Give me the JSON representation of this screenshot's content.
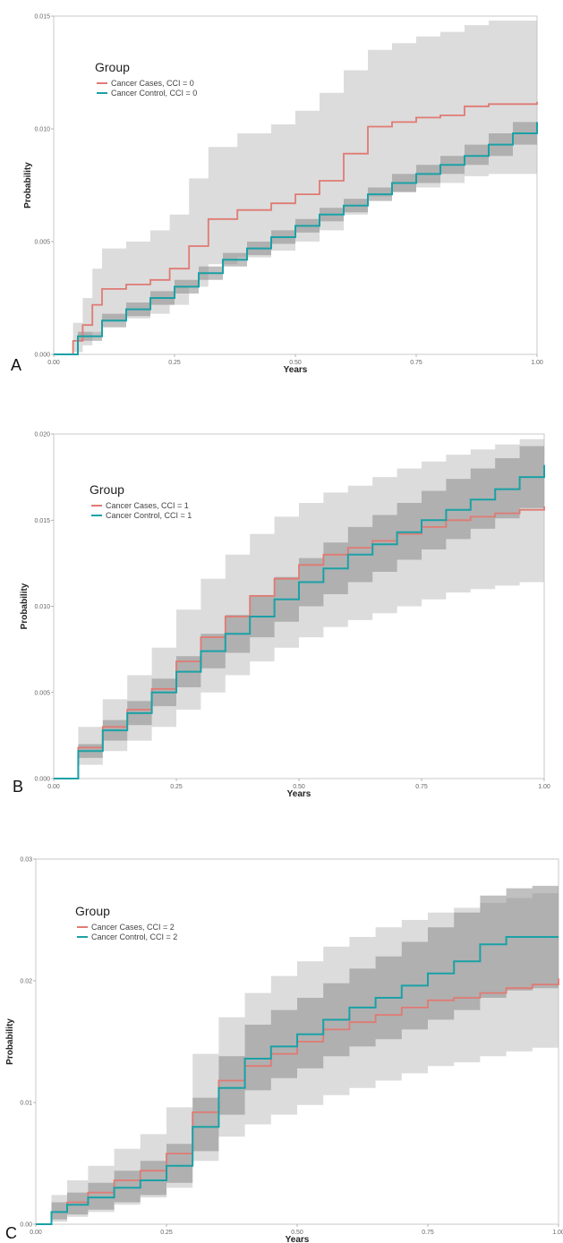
{
  "chart_data": [
    {
      "panel_label": "A",
      "type": "line",
      "xlabel": "Years",
      "ylabel": "Probability",
      "xlim": [
        0,
        1
      ],
      "ylim": [
        0,
        0.015
      ],
      "x_ticks": [
        "0.00",
        "0.25",
        "0.50",
        "0.75",
        "1.00"
      ],
      "y_ticks": [
        "0.000",
        "0.005",
        "0.010",
        "0.015"
      ],
      "legend_title": "Group",
      "legend_position": "top-left",
      "grid": false,
      "series": [
        {
          "name": "Cancer Cases, CCI = 0",
          "color": "#e07a73",
          "x": [
            0,
            0.04,
            0.06,
            0.08,
            0.1,
            0.15,
            0.2,
            0.24,
            0.28,
            0.32,
            0.38,
            0.45,
            0.5,
            0.55,
            0.6,
            0.65,
            0.7,
            0.75,
            0.8,
            0.85,
            0.9,
            1.0
          ],
          "y": [
            0,
            0.0006,
            0.0013,
            0.0022,
            0.0029,
            0.0031,
            0.0033,
            0.0038,
            0.0048,
            0.006,
            0.0064,
            0.0067,
            0.0071,
            0.0077,
            0.0089,
            0.0101,
            0.0103,
            0.0105,
            0.0106,
            0.011,
            0.0111,
            0.0112
          ],
          "ci_lower": [
            0,
            0.0001,
            0.0004,
            0.001,
            0.0015,
            0.0016,
            0.0018,
            0.0022,
            0.003,
            0.004,
            0.0043,
            0.0046,
            0.005,
            0.0055,
            0.0062,
            0.007,
            0.0072,
            0.0074,
            0.0076,
            0.0079,
            0.008,
            0.0082
          ],
          "ci_upper": [
            0,
            0.0014,
            0.0025,
            0.0038,
            0.0047,
            0.005,
            0.0055,
            0.0062,
            0.0078,
            0.0092,
            0.0098,
            0.0102,
            0.0108,
            0.0116,
            0.0126,
            0.0135,
            0.0138,
            0.0141,
            0.0143,
            0.0146,
            0.0148,
            0.015
          ]
        },
        {
          "name": "Cancer Control, CCI = 0",
          "color": "#1aa1a6",
          "x": [
            0,
            0.05,
            0.1,
            0.15,
            0.2,
            0.25,
            0.3,
            0.35,
            0.4,
            0.45,
            0.5,
            0.55,
            0.6,
            0.65,
            0.7,
            0.75,
            0.8,
            0.85,
            0.9,
            0.95,
            1.0
          ],
          "y": [
            0,
            0.0008,
            0.0015,
            0.002,
            0.0025,
            0.003,
            0.0036,
            0.0042,
            0.0047,
            0.0052,
            0.0057,
            0.0062,
            0.0066,
            0.0071,
            0.0076,
            0.008,
            0.0084,
            0.0088,
            0.0093,
            0.0098,
            0.0103
          ],
          "ci_lower": [
            0,
            0.0006,
            0.0012,
            0.0017,
            0.0022,
            0.0027,
            0.0033,
            0.0039,
            0.0044,
            0.0049,
            0.0054,
            0.0059,
            0.0063,
            0.0068,
            0.0072,
            0.0076,
            0.008,
            0.0084,
            0.0088,
            0.0093,
            0.0097
          ],
          "ci_upper": [
            0,
            0.001,
            0.0018,
            0.0023,
            0.0028,
            0.0033,
            0.0039,
            0.0045,
            0.005,
            0.0055,
            0.006,
            0.0065,
            0.0069,
            0.0074,
            0.008,
            0.0084,
            0.0088,
            0.0093,
            0.0098,
            0.0103,
            0.0108
          ]
        }
      ]
    },
    {
      "panel_label": "B",
      "type": "line",
      "xlabel": "Years",
      "ylabel": "Probability",
      "xlim": [
        0,
        1
      ],
      "ylim": [
        0,
        0.02
      ],
      "x_ticks": [
        "0.00",
        "0.25",
        "0.50",
        "0.75",
        "1.00"
      ],
      "y_ticks": [
        "0.000",
        "0.005",
        "0.010",
        "0.015",
        "0.020"
      ],
      "legend_title": "Group",
      "legend_position": "top-left",
      "grid": false,
      "series": [
        {
          "name": "Cancer Cases, CCI = 1",
          "color": "#e07a73",
          "x": [
            0,
            0.05,
            0.1,
            0.15,
            0.2,
            0.25,
            0.3,
            0.35,
            0.4,
            0.45,
            0.5,
            0.55,
            0.6,
            0.65,
            0.7,
            0.75,
            0.8,
            0.85,
            0.9,
            0.95,
            1.0
          ],
          "y": [
            0,
            0.0018,
            0.003,
            0.004,
            0.0052,
            0.0068,
            0.0082,
            0.0094,
            0.0106,
            0.0116,
            0.0124,
            0.013,
            0.0134,
            0.0138,
            0.0142,
            0.0146,
            0.015,
            0.0152,
            0.0154,
            0.0156,
            0.0158
          ],
          "ci_lower": [
            0,
            0.0008,
            0.0016,
            0.0022,
            0.003,
            0.004,
            0.005,
            0.006,
            0.0068,
            0.0076,
            0.0082,
            0.0088,
            0.0092,
            0.0096,
            0.01,
            0.0104,
            0.0108,
            0.011,
            0.0112,
            0.0114,
            0.0116
          ],
          "ci_upper": [
            0,
            0.003,
            0.0046,
            0.006,
            0.0076,
            0.0098,
            0.0116,
            0.013,
            0.0142,
            0.0152,
            0.016,
            0.0166,
            0.017,
            0.0175,
            0.018,
            0.0184,
            0.0188,
            0.0191,
            0.0194,
            0.0197,
            0.02
          ]
        },
        {
          "name": "Cancer Control, CCI = 1",
          "color": "#1aa1a6",
          "x": [
            0,
            0.05,
            0.1,
            0.15,
            0.2,
            0.25,
            0.3,
            0.35,
            0.4,
            0.45,
            0.5,
            0.55,
            0.6,
            0.65,
            0.7,
            0.75,
            0.8,
            0.85,
            0.9,
            0.95,
            1.0
          ],
          "y": [
            0,
            0.0016,
            0.0028,
            0.0038,
            0.005,
            0.0062,
            0.0074,
            0.0084,
            0.0094,
            0.0104,
            0.0114,
            0.0122,
            0.013,
            0.0136,
            0.0143,
            0.015,
            0.0156,
            0.0162,
            0.0168,
            0.0175,
            0.0182
          ],
          "ci_lower": [
            0,
            0.0012,
            0.0022,
            0.0031,
            0.0042,
            0.0053,
            0.0064,
            0.0073,
            0.0082,
            0.0091,
            0.01,
            0.0107,
            0.0114,
            0.012,
            0.0127,
            0.0133,
            0.0139,
            0.0145,
            0.0151,
            0.0157,
            0.0163
          ],
          "ci_upper": [
            0,
            0.002,
            0.0034,
            0.0045,
            0.0058,
            0.0071,
            0.0084,
            0.0095,
            0.0106,
            0.0117,
            0.0128,
            0.0137,
            0.0146,
            0.0153,
            0.016,
            0.0167,
            0.0174,
            0.018,
            0.0186,
            0.0193,
            0.02
          ]
        }
      ]
    },
    {
      "panel_label": "C",
      "type": "line",
      "xlabel": "Years",
      "ylabel": "Probability",
      "xlim": [
        0,
        1
      ],
      "ylim": [
        0,
        0.03
      ],
      "x_ticks": [
        "0.00",
        "0.25",
        "0.50",
        "0.75",
        "1.00"
      ],
      "y_ticks": [
        "0.00",
        "0.01",
        "0.02",
        "0.03"
      ],
      "legend_title": "Group",
      "legend_position": "top-left",
      "grid": false,
      "series": [
        {
          "name": "Cancer Cases, CCI = 2",
          "color": "#e07a73",
          "x": [
            0,
            0.03,
            0.06,
            0.1,
            0.15,
            0.2,
            0.25,
            0.3,
            0.35,
            0.4,
            0.45,
            0.5,
            0.55,
            0.6,
            0.65,
            0.7,
            0.75,
            0.8,
            0.85,
            0.9,
            0.95,
            1.0
          ],
          "y": [
            0,
            0.001,
            0.0018,
            0.0026,
            0.0036,
            0.0044,
            0.0058,
            0.0092,
            0.0118,
            0.013,
            0.014,
            0.015,
            0.016,
            0.0166,
            0.0172,
            0.0178,
            0.0184,
            0.0186,
            0.019,
            0.0194,
            0.0197,
            0.0202
          ],
          "ci_lower": [
            0,
            0.0002,
            0.0006,
            0.001,
            0.0016,
            0.0022,
            0.003,
            0.0052,
            0.0072,
            0.0082,
            0.009,
            0.0098,
            0.0106,
            0.0112,
            0.0118,
            0.0124,
            0.013,
            0.0133,
            0.0138,
            0.0142,
            0.0145,
            0.015
          ],
          "ci_upper": [
            0,
            0.0024,
            0.0036,
            0.0048,
            0.0062,
            0.0074,
            0.0096,
            0.014,
            0.017,
            0.019,
            0.0204,
            0.0216,
            0.0228,
            0.0236,
            0.0244,
            0.025,
            0.0256,
            0.026,
            0.0264,
            0.0268,
            0.0272,
            0.0276
          ]
        },
        {
          "name": "Cancer Control, CCI = 2",
          "color": "#1aa1a6",
          "x": [
            0,
            0.03,
            0.06,
            0.1,
            0.15,
            0.2,
            0.25,
            0.3,
            0.35,
            0.4,
            0.45,
            0.5,
            0.55,
            0.6,
            0.65,
            0.7,
            0.75,
            0.8,
            0.85,
            0.9,
            0.95,
            1.0
          ],
          "y": [
            0,
            0.001,
            0.0016,
            0.0022,
            0.003,
            0.0036,
            0.0048,
            0.008,
            0.0112,
            0.0136,
            0.0146,
            0.0156,
            0.0168,
            0.0178,
            0.0186,
            0.0196,
            0.0206,
            0.0216,
            0.023,
            0.0236,
            0.0236,
            0.0236
          ],
          "ci_lower": [
            0,
            0.0004,
            0.0008,
            0.0012,
            0.0018,
            0.0024,
            0.0034,
            0.006,
            0.009,
            0.011,
            0.012,
            0.0128,
            0.0138,
            0.0146,
            0.0152,
            0.016,
            0.0168,
            0.0176,
            0.0186,
            0.0192,
            0.0194,
            0.0196
          ],
          "ci_upper": [
            0,
            0.0018,
            0.0026,
            0.0034,
            0.0044,
            0.0052,
            0.0066,
            0.0104,
            0.0138,
            0.0164,
            0.0176,
            0.0186,
            0.0198,
            0.021,
            0.022,
            0.0232,
            0.0244,
            0.0256,
            0.027,
            0.0276,
            0.0278,
            0.028
          ]
        }
      ]
    }
  ]
}
